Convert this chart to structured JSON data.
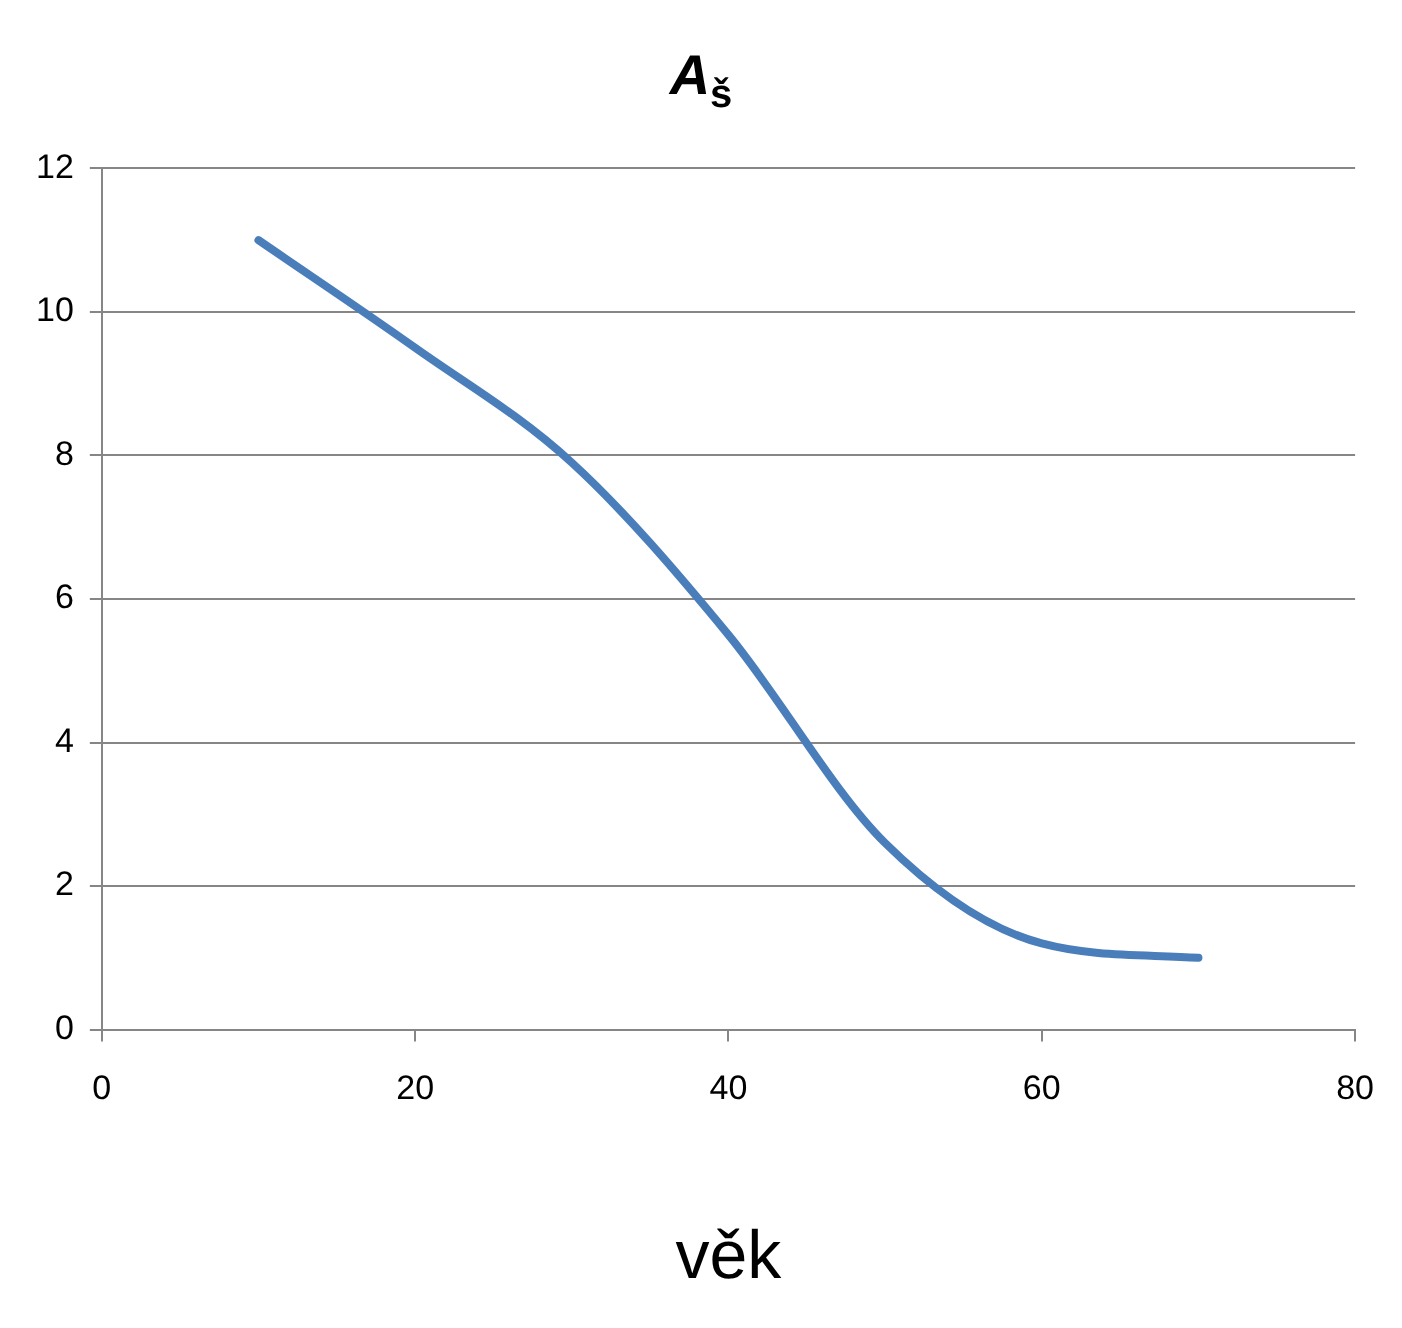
{
  "chart_data": {
    "type": "line",
    "title": "A$_{š}$",
    "xlabel": "věk",
    "x": [
      10,
      20,
      30,
      40,
      50,
      60,
      70
    ],
    "series": [
      {
        "color": "#4a7ebb",
        "values": [
          11,
          9.5,
          7.9,
          5.5,
          2.6,
          1.2,
          1.0
        ]
      }
    ],
    "xlim": [
      0,
      80
    ],
    "xticks": [
      0,
      20,
      40,
      60,
      80
    ],
    "ylim": [
      0,
      12
    ],
    "yticks": [
      0,
      2,
      4,
      6,
      8,
      10,
      12
    ],
    "grid": "y",
    "legend": false,
    "marker": "none",
    "line_style": "solid"
  }
}
